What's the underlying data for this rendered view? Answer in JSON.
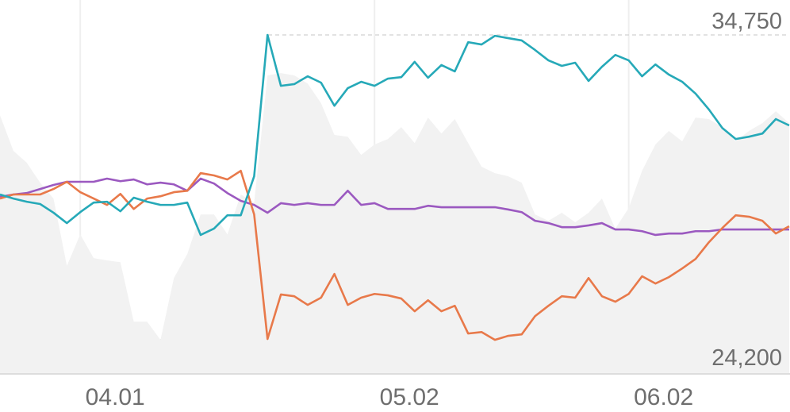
{
  "chart_data": {
    "type": "line",
    "categories": [
      null,
      null,
      null,
      null,
      null,
      null,
      "04.01",
      null,
      null,
      null,
      null,
      null,
      null,
      null,
      null,
      null,
      null,
      null,
      null,
      null,
      null,
      null,
      null,
      null,
      null,
      null,
      null,
      null,
      "05.02",
      null,
      null,
      null,
      null,
      null,
      null,
      null,
      null,
      null,
      null,
      null,
      null,
      null,
      null,
      null,
      null,
      null,
      null,
      "06.02",
      null,
      null,
      null,
      null,
      null,
      null,
      null,
      null,
      null,
      null,
      null,
      null
    ],
    "ylim": [
      23050,
      35960
    ],
    "yticks": [
      {
        "value": 34750,
        "label": "34,750"
      },
      {
        "value": 24200,
        "label": "24,200"
      }
    ],
    "grid": true,
    "series": [
      {
        "style": "area",
        "color": "#f2f2f2",
        "values": [
          31970,
          30740,
          30330,
          29640,
          29090,
          26760,
          27850,
          27030,
          26950,
          26890,
          24830,
          24830,
          24200,
          26340,
          27170,
          28540,
          28540,
          27850,
          29230,
          28950,
          33350,
          33430,
          33350,
          33070,
          32390,
          31290,
          31230,
          30600,
          30960,
          31150,
          31560,
          31010,
          31890,
          31340,
          31840,
          31010,
          30190,
          29970,
          29860,
          29640,
          28540,
          28320,
          28600,
          28270,
          28600,
          29090,
          28050,
          28760,
          30050,
          30960,
          31430,
          31070,
          31890,
          31840,
          31560,
          31070,
          31430,
          31700,
          32110,
          31700
        ]
      },
      {
        "style": "line",
        "color": "#9b59c0",
        "values": [
          29150,
          29230,
          29280,
          29420,
          29560,
          29670,
          29670,
          29670,
          29780,
          29690,
          29750,
          29580,
          29640,
          29580,
          29360,
          29780,
          29610,
          29280,
          29010,
          28870,
          28600,
          28930,
          28870,
          28930,
          28870,
          28870,
          29360,
          28870,
          28930,
          28730,
          28730,
          28730,
          28840,
          28790,
          28790,
          28790,
          28790,
          28790,
          28710,
          28620,
          28320,
          28240,
          28100,
          28100,
          28160,
          28240,
          28020,
          28020,
          27960,
          27830,
          27880,
          27880,
          27960,
          27960,
          28020,
          28020,
          28020,
          28020,
          28020,
          28020
        ]
      },
      {
        "style": "line",
        "color": "#e8794a",
        "values": [
          29090,
          29230,
          29230,
          29230,
          29420,
          29670,
          29310,
          29090,
          28870,
          29250,
          28730,
          29090,
          29170,
          29310,
          29360,
          29970,
          29890,
          29750,
          30050,
          28540,
          24230,
          25770,
          25710,
          25410,
          25660,
          26480,
          25410,
          25660,
          25790,
          25740,
          25630,
          25190,
          25570,
          25190,
          25380,
          24420,
          24470,
          24200,
          24340,
          24390,
          25020,
          25380,
          25710,
          25660,
          26340,
          25710,
          25520,
          25790,
          26400,
          26150,
          26370,
          26670,
          27000,
          27580,
          28070,
          28510,
          28460,
          28320,
          27880,
          28130
        ]
      },
      {
        "style": "line",
        "color": "#26a9b8",
        "values": [
          29230,
          29090,
          28980,
          28900,
          28600,
          28240,
          28620,
          28950,
          28980,
          28650,
          29120,
          28980,
          28870,
          28870,
          28950,
          27830,
          28050,
          28510,
          28510,
          29860,
          34750,
          32990,
          33050,
          33320,
          33100,
          32300,
          32910,
          33130,
          32990,
          33240,
          33290,
          33820,
          33270,
          33710,
          33490,
          34500,
          34420,
          34720,
          34640,
          34560,
          34230,
          33870,
          33680,
          33790,
          33160,
          33650,
          34060,
          33870,
          33320,
          33730,
          33380,
          33130,
          32720,
          32170,
          31530,
          31150,
          31230,
          31340,
          31840,
          31620
        ]
      }
    ]
  }
}
